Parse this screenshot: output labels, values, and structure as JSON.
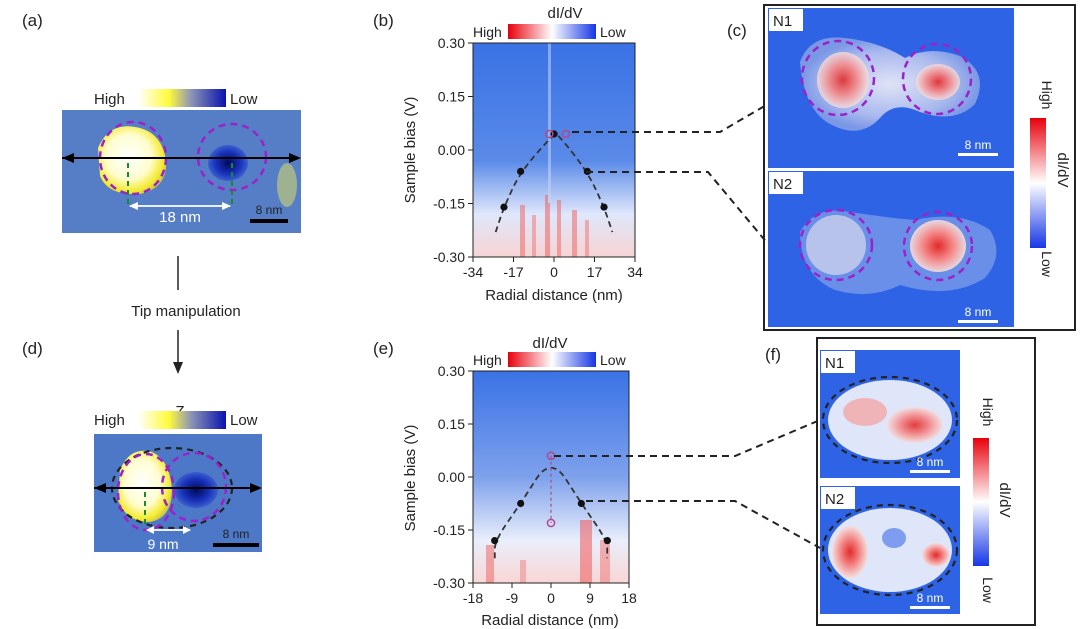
{
  "panel_labels": {
    "a": "(a)",
    "b": "(b)",
    "c": "(c)",
    "d": "(d)",
    "e": "(e)",
    "f": "(f)"
  },
  "topo": {
    "cbar_title": "Z",
    "cbar_high": "High",
    "cbar_low": "Low",
    "a_distance": "18 nm",
    "d_distance": "9 nm",
    "scale": "8 nm"
  },
  "arrow_text": "Tip manipulation",
  "colors": {
    "high": "#e8000b",
    "low": "#1536e6",
    "map_bg": "#3a6fe0",
    "topo_bg": "#4d78c8",
    "yellow": "#fffb3a",
    "dash_purple": "#9b22c8"
  },
  "chart_data": [
    {
      "type": "heatmap",
      "panel": "b",
      "title": "dI/dV",
      "legend_high": "High",
      "legend_low": "Low",
      "xlabel": "Radial distance (nm)",
      "ylabel": "Sample bias (V)",
      "xticks": [
        "-34",
        "-17",
        "0",
        "17",
        "34"
      ],
      "yticks": [
        "0.30",
        "0.15",
        "0.00",
        "-0.15",
        "-0.30"
      ],
      "xlim": [
        -34,
        34
      ],
      "ylim": [
        -0.3,
        0.3
      ],
      "dispersion_filled": [
        [
          -21,
          -0.16
        ],
        [
          -14,
          -0.06
        ],
        [
          0,
          0.045
        ],
        [
          14,
          -0.06
        ],
        [
          21,
          -0.16
        ]
      ],
      "dispersion_open": [
        [
          -2,
          0.045
        ],
        [
          5,
          0.045
        ]
      ]
    },
    {
      "type": "heatmap",
      "panel": "e",
      "title": "dI/dV",
      "legend_high": "High",
      "legend_low": "Low",
      "xlabel": "Radial distance (nm)",
      "ylabel": "Sample bias (V)",
      "xticks": [
        "-18",
        "-9",
        "0",
        "9",
        "18"
      ],
      "yticks": [
        "0.30",
        "0.15",
        "0.00",
        "-0.15",
        "-0.30"
      ],
      "xlim": [
        -18,
        18
      ],
      "ylim": [
        -0.3,
        0.3
      ],
      "dispersion_filled": [
        [
          -13,
          -0.18
        ],
        [
          -7,
          -0.075
        ],
        [
          7,
          -0.075
        ],
        [
          13,
          -0.18
        ]
      ],
      "dispersion_open": [
        [
          0,
          0.06
        ],
        [
          0,
          -0.13
        ]
      ]
    }
  ],
  "maps_c": {
    "n1": "N1",
    "n2": "N2",
    "scale": "8 nm",
    "cbar_title": "dI/dV",
    "cbar_high": "High",
    "cbar_low": "Low"
  },
  "maps_f": {
    "n1": "N1",
    "n2": "N2",
    "scale": "8 nm",
    "cbar_title": "dI/dV",
    "cbar_high": "High",
    "cbar_low": "Low"
  }
}
